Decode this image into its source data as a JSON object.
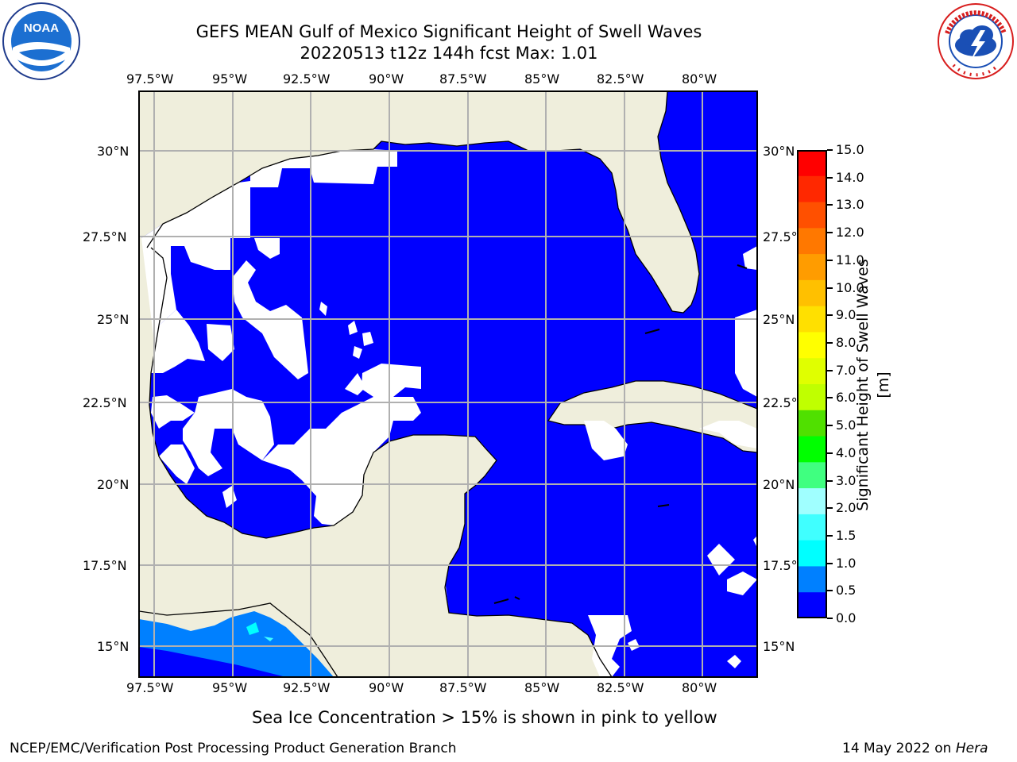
{
  "header": {
    "title_line1": "GEFS MEAN Gulf of Mexico Significant Height of Swell Waves",
    "title_line2": "20220513 t12z 144h fcst   Max: 1.01"
  },
  "map": {
    "lon_ticks": [
      "97.5°W",
      "95°W",
      "92.5°W",
      "90°W",
      "87.5°W",
      "85°W",
      "82.5°W",
      "80°W"
    ],
    "lat_ticks": [
      "30°N",
      "27.5°N",
      "25°N",
      "22.5°N",
      "20°N",
      "17.5°N",
      "15°N"
    ],
    "land_color": "#efeedc",
    "ocean_color": "#0000ff",
    "grid_color": "#b0b0b0"
  },
  "colorbar": {
    "label": "Significant Height of Swell Waves [m]",
    "ticks": [
      "15.0",
      "14.0",
      "13.0",
      "12.0",
      "11.0",
      "10.0",
      "9.0",
      "8.0",
      "7.0",
      "6.0",
      "5.0",
      "4.0",
      "3.0",
      "2.0",
      "1.5",
      "1.0",
      "0.5",
      "0.0"
    ],
    "colors_top_to_bottom": [
      "#ff0000",
      "#ff2800",
      "#ff5000",
      "#ff7800",
      "#ff9c00",
      "#ffc000",
      "#ffe000",
      "#ffff00",
      "#e0ff00",
      "#c0ff00",
      "#50e000",
      "#00ff00",
      "#40ff80",
      "#a0ffff",
      "#40ffff",
      "#00ffff",
      "#0080ff",
      "#0000ff"
    ]
  },
  "notes": {
    "ice_note": "Sea Ice Concentration > 15% is shown in pink to yellow"
  },
  "footer": {
    "left": "NCEP/EMC/Verification Post Processing Product Generation Branch",
    "date": "14 May 2022 on",
    "machine": "Hera"
  },
  "logos": {
    "noaa_text": "NOAA",
    "nws_text": "NATIONAL WEATHER SERVICE"
  }
}
